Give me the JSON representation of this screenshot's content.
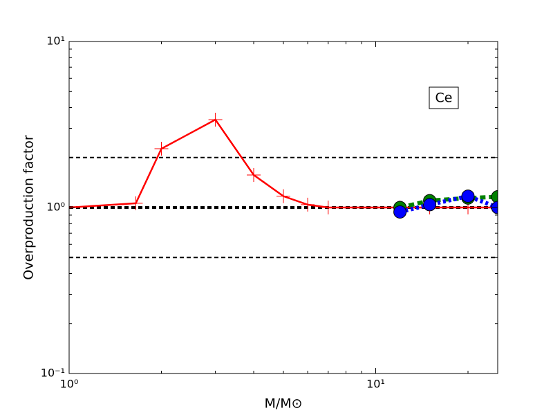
{
  "chart_data": {
    "type": "line",
    "xlabel": "M/M⊙",
    "ylabel": "Overproduction factor",
    "annotation": "Ce",
    "xscale": "log",
    "yscale": "log",
    "xlim": [
      1,
      25
    ],
    "ylim": [
      0.1,
      10
    ],
    "xticks": [
      {
        "value": 1,
        "label": "10⁰"
      },
      {
        "value": 10,
        "label": "10¹"
      }
    ],
    "yticks": [
      {
        "value": 0.1,
        "label": "10⁻¹"
      },
      {
        "value": 1,
        "label": "10⁰"
      },
      {
        "value": 10,
        "label": "10¹"
      }
    ],
    "xminorticks": [
      2,
      3,
      4,
      5,
      6,
      7,
      8,
      9,
      20
    ],
    "yminorticks": [
      0.2,
      0.3,
      0.4,
      0.5,
      0.6,
      0.7,
      0.8,
      0.9,
      2,
      3,
      4,
      5,
      6,
      7,
      8,
      9
    ],
    "hlines": [
      {
        "value": 2,
        "width": 2
      },
      {
        "value": 1,
        "width": 4
      },
      {
        "value": 0.5,
        "width": 2
      }
    ],
    "series": [
      {
        "color": "#ff0000",
        "dash": "none",
        "marker": "plus",
        "x": [
          1,
          1.65,
          2,
          3,
          4,
          5,
          6,
          7,
          12,
          15,
          20,
          25
        ],
        "values": [
          1.0,
          1.06,
          2.26,
          3.38,
          1.57,
          1.17,
          1.04,
          1.0,
          1.0,
          1.0,
          1.0,
          1.0
        ]
      },
      {
        "color": "#008000",
        "dash": "8,5",
        "marker": "circle",
        "x": [
          12,
          15,
          20,
          25
        ],
        "values": [
          1.0,
          1.1,
          1.14,
          1.16
        ]
      },
      {
        "color": "#0000ff",
        "dash": "4,4",
        "marker": "circle",
        "x": [
          12,
          15,
          20,
          25
        ],
        "values": [
          0.94,
          1.04,
          1.17,
          1.0
        ]
      }
    ]
  }
}
